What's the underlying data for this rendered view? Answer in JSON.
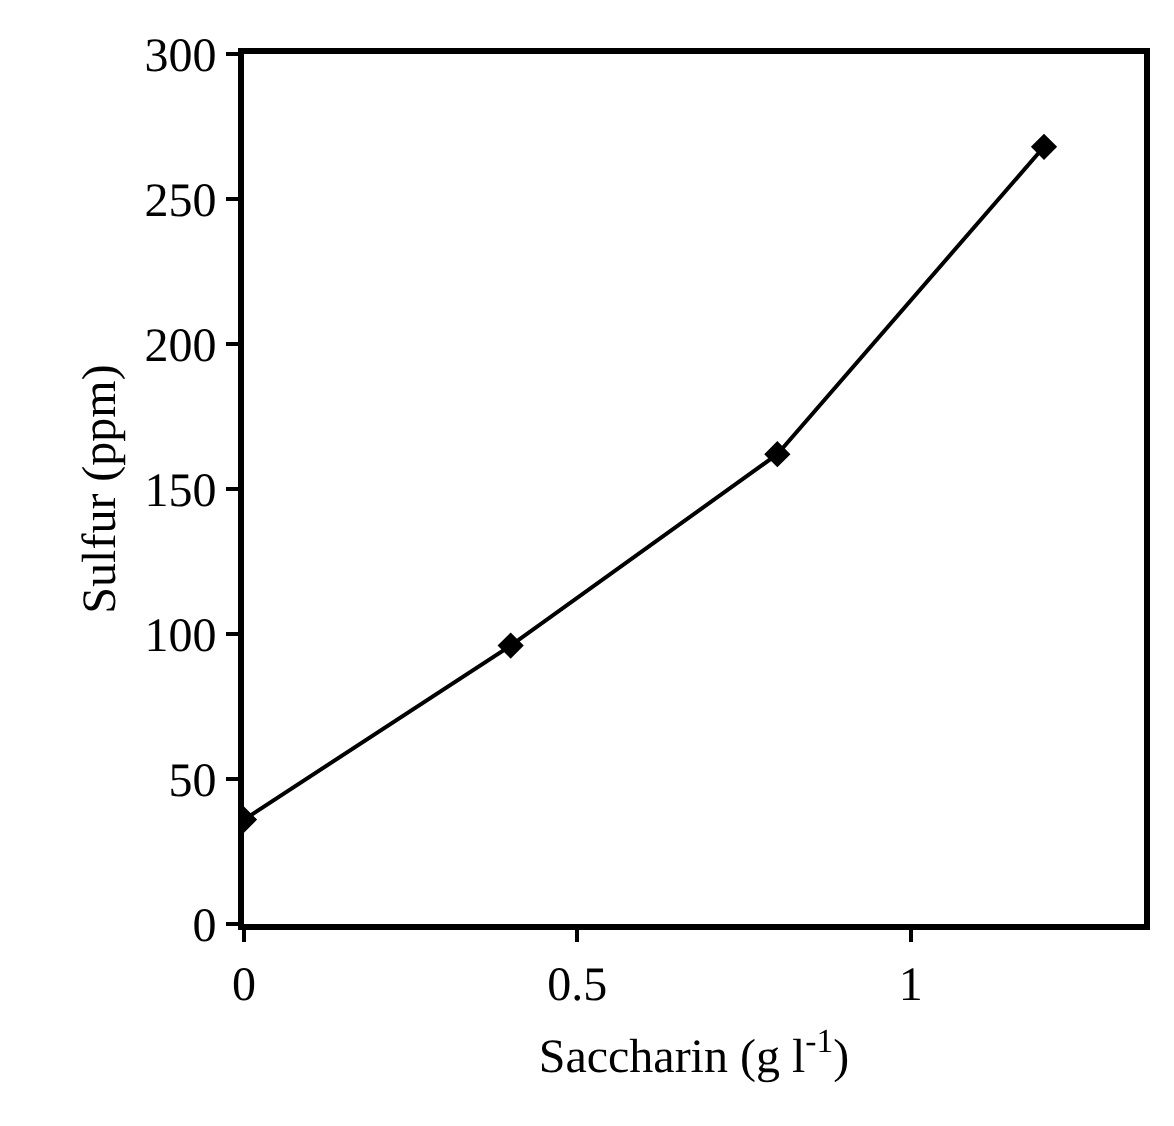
{
  "chart_data": {
    "type": "line",
    "xlabel": "Saccharin (g l$^{-1}$)",
    "ylabel": "Sulfur (ppm)",
    "x": [
      0,
      0.4,
      0.8,
      1.2
    ],
    "series": [
      {
        "color": "#000000",
        "values": [
          36,
          96,
          162,
          268
        ]
      }
    ],
    "xlim": [
      0,
      1.35
    ],
    "xticks": [
      0,
      0.5,
      1
    ],
    "ylim": [
      0,
      300
    ],
    "yticks": [
      0,
      50,
      100,
      150,
      200,
      250,
      300
    ],
    "marker": "diamond",
    "line_style": "solid"
  }
}
